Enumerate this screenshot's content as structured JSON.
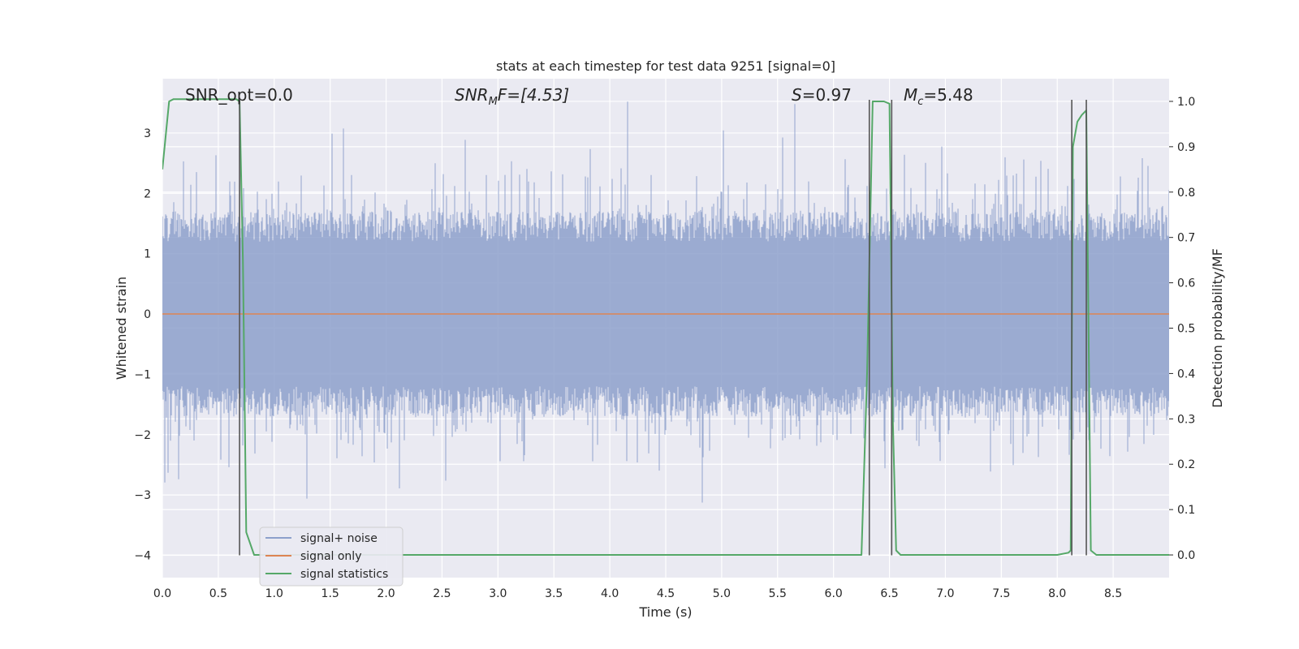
{
  "chart_data": {
    "type": "line",
    "title": "stats at each timestep for test data 9251 [signal=0]",
    "xlabel": "Time (s)",
    "ylabel_left": "Whitened strain",
    "ylabel_right": "Detection probability/MF",
    "xlim": [
      0.0,
      9.0
    ],
    "ylim_left": [
      -4.37,
      3.9
    ],
    "ylim_right": [
      -0.05,
      1.05
    ],
    "xticks": [
      "0.0",
      "0.5",
      "1.0",
      "1.5",
      "2.0",
      "2.5",
      "3.0",
      "3.5",
      "4.0",
      "4.5",
      "5.0",
      "5.5",
      "6.0",
      "6.5",
      "7.0",
      "7.5",
      "8.0",
      "8.5"
    ],
    "yticks_left": [
      "3",
      "2",
      "1",
      "0",
      "−1",
      "−2",
      "−3",
      "−4"
    ],
    "yticks_right": [
      "1.0",
      "0.9",
      "0.8",
      "0.7",
      "0.6",
      "0.5",
      "0.4",
      "0.3",
      "0.2",
      "0.1",
      "0.0"
    ],
    "grid": true,
    "legend": {
      "position": "lower-left",
      "entries": [
        "signal+ noise",
        "signal only",
        "signal statistics"
      ]
    },
    "annotations": {
      "snr_opt": "SNR_opt=0.0",
      "snr_mf_base": "SNR",
      "snr_mf_sub": "M",
      "snr_mf_rest": "F=[4.53]",
      "s_var": "S",
      "s_rest": "=0.97",
      "mc_var": "M",
      "mc_sub": "c",
      "mc_rest": "=5.48"
    },
    "colors": {
      "noise": "#8da0cb",
      "signal": "#dd8452",
      "stats": "#55a868",
      "vline": "#555555",
      "bg": "#eaeaf2",
      "grid": "#ffffff"
    },
    "series": [
      {
        "name": "signal+ noise",
        "axis": "left",
        "kind": "noise",
        "sample_rate": 2048,
        "envelope_core": 1.2,
        "envelope_peak": 3.6
      },
      {
        "name": "signal only",
        "axis": "left",
        "x": [
          0.0,
          9.0
        ],
        "y": [
          0.0,
          0.0
        ]
      },
      {
        "name": "signal statistics",
        "axis": "right",
        "x": [
          0.0,
          0.06,
          0.1,
          0.2,
          0.3,
          0.4,
          0.5,
          0.6,
          0.66,
          0.69,
          0.72,
          0.75,
          0.82,
          0.9,
          1.0,
          2.0,
          3.0,
          4.0,
          5.0,
          5.75,
          6.0,
          6.25,
          6.3,
          6.35,
          6.4,
          6.45,
          6.5,
          6.53,
          6.56,
          6.6,
          6.7,
          7.0,
          8.0,
          8.1,
          8.12,
          8.14,
          8.18,
          8.22,
          8.26,
          8.3,
          8.35,
          8.5,
          9.0
        ],
        "y": [
          0.85,
          1.0,
          1.005,
          1.005,
          1.005,
          1.005,
          1.005,
          1.005,
          1.005,
          1.0,
          0.65,
          0.05,
          0.0,
          0.0,
          0.0,
          0.0,
          0.0,
          0.0,
          0.0,
          0.0,
          0.0,
          0.0,
          0.4,
          1.0,
          1.0,
          1.0,
          0.995,
          0.3,
          0.01,
          0.0,
          0.0,
          0.0,
          0.0,
          0.005,
          0.01,
          0.9,
          0.955,
          0.97,
          0.98,
          0.01,
          0.0,
          0.0,
          0.0
        ]
      }
    ],
    "vlines": [
      {
        "x": 0.69,
        "y_range": [
          -4.0,
          3.55
        ]
      },
      {
        "x": 6.32,
        "y_range": [
          -4.0,
          3.55
        ]
      },
      {
        "x": 6.52,
        "y_range": [
          -4.0,
          3.55
        ]
      },
      {
        "x": 8.13,
        "y_range": [
          -4.0,
          3.55
        ]
      },
      {
        "x": 8.26,
        "y_range": [
          -4.0,
          3.55
        ]
      }
    ]
  }
}
